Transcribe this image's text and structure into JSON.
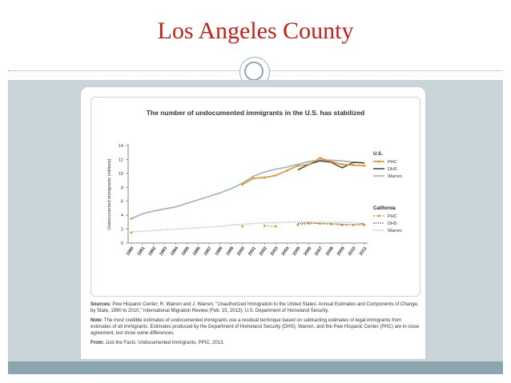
{
  "slide": {
    "title": "Los Angeles County"
  },
  "colors": {
    "title": "#c0211a",
    "phc": "#e0922c",
    "dhs": "#554d43",
    "warren": "#9cb1b8",
    "background_panel": "#c9d5d9",
    "bottom_bar": "#8ba6ae"
  },
  "chart_data": {
    "type": "line",
    "title": "The number of undocumented immigrants in the U.S. has stabilized",
    "ylabel": "Undocumented immigrants (millions)",
    "xlabel": "",
    "ylim": [
      0,
      14
    ],
    "yticks": [
      0,
      2,
      4,
      6,
      8,
      10,
      12,
      14
    ],
    "x": [
      "1990",
      "1991",
      "1992",
      "1993",
      "1994",
      "1995",
      "1996",
      "1997",
      "1998",
      "1999",
      "2000",
      "2001",
      "2002",
      "2003",
      "2004",
      "2005",
      "2006",
      "2007",
      "2008",
      "2009",
      "2010",
      "2011"
    ],
    "grid": false,
    "legend_position": "right",
    "legend_groups": [
      {
        "heading": "U.S.",
        "entries": [
          {
            "label": "PHC",
            "series": 0
          },
          {
            "label": "DHS",
            "series": 1
          },
          {
            "label": "Warren",
            "series": 2
          }
        ]
      },
      {
        "heading": "California",
        "entries": [
          {
            "label": "PHC",
            "series": 3
          },
          {
            "label": "DHS",
            "series": 4
          },
          {
            "label": "Warren",
            "series": 5
          }
        ]
      }
    ],
    "series": [
      {
        "group": "U.S.",
        "name": "PHC",
        "color": "#e0922c",
        "style": "solid-marker",
        "values": [
          3.5,
          null,
          null,
          null,
          null,
          null,
          null,
          null,
          null,
          null,
          8.4,
          9.3,
          9.4,
          9.7,
          10.4,
          11.1,
          11.3,
          12.2,
          11.7,
          11.3,
          11.2,
          11.1
        ]
      },
      {
        "group": "U.S.",
        "name": "DHS",
        "color": "#554d43",
        "style": "solid",
        "values": [
          null,
          null,
          null,
          null,
          null,
          null,
          null,
          null,
          null,
          null,
          null,
          null,
          null,
          null,
          null,
          10.5,
          11.3,
          11.8,
          11.6,
          10.8,
          11.6,
          11.5
        ]
      },
      {
        "group": "U.S.",
        "name": "Warren",
        "color": "#9cb1b8",
        "style": "solid",
        "values": [
          3.5,
          4.2,
          4.6,
          4.9,
          5.2,
          5.7,
          6.2,
          6.7,
          7.2,
          7.8,
          8.6,
          9.6,
          10.2,
          10.6,
          10.9,
          11.3,
          11.7,
          11.9,
          11.9,
          11.8,
          11.6,
          11.5
        ]
      },
      {
        "group": "California",
        "name": "PHC",
        "color": "#e0922c",
        "style": "dashed-marker",
        "values": [
          1.5,
          null,
          null,
          null,
          null,
          null,
          null,
          null,
          null,
          null,
          2.4,
          null,
          2.5,
          2.4,
          null,
          2.6,
          2.8,
          2.8,
          2.7,
          2.6,
          2.6,
          2.6
        ]
      },
      {
        "group": "California",
        "name": "DHS",
        "color": "#554d43",
        "style": "dotted",
        "values": [
          null,
          null,
          null,
          null,
          null,
          null,
          null,
          null,
          null,
          null,
          null,
          null,
          null,
          null,
          null,
          2.8,
          2.9,
          2.8,
          2.8,
          2.7,
          2.6,
          2.8
        ]
      },
      {
        "group": "California",
        "name": "Warren",
        "color": "#9cb1b8",
        "style": "dotted",
        "values": [
          1.6,
          1.7,
          1.8,
          1.9,
          2.0,
          2.1,
          2.2,
          2.3,
          2.4,
          2.6,
          2.7,
          2.8,
          2.9,
          2.9,
          3.0,
          3.0,
          3.0,
          3.0,
          3.0,
          3.0,
          2.9,
          2.8
        ]
      }
    ]
  },
  "notes": {
    "sources_label": "Sources:",
    "sources_text": "Pew Hispanic Center; R. Warren and J. Warren, \"Unauthorized Immigration to the United States: Annual Estimates and Components of Change, by State, 1990 to 2010,\" International Migration Review (Feb. 15, 2013); U.S. Department of Homeland Security.",
    "note_label": "Note:",
    "note_text": "The most credible estimates of undocumented immigrants use a residual technique based on subtracting estimates of legal immigrants from estimates of all immigrants. Estimates produced by the Department of Homeland Security (DHS), Warren, and the Pew Hispanic Center (PHC) are in close agreement, but show some differences.",
    "from_label": "From:",
    "from_text": "Just the Facts: Undocumented Immigrants, PPIC, 2013."
  }
}
